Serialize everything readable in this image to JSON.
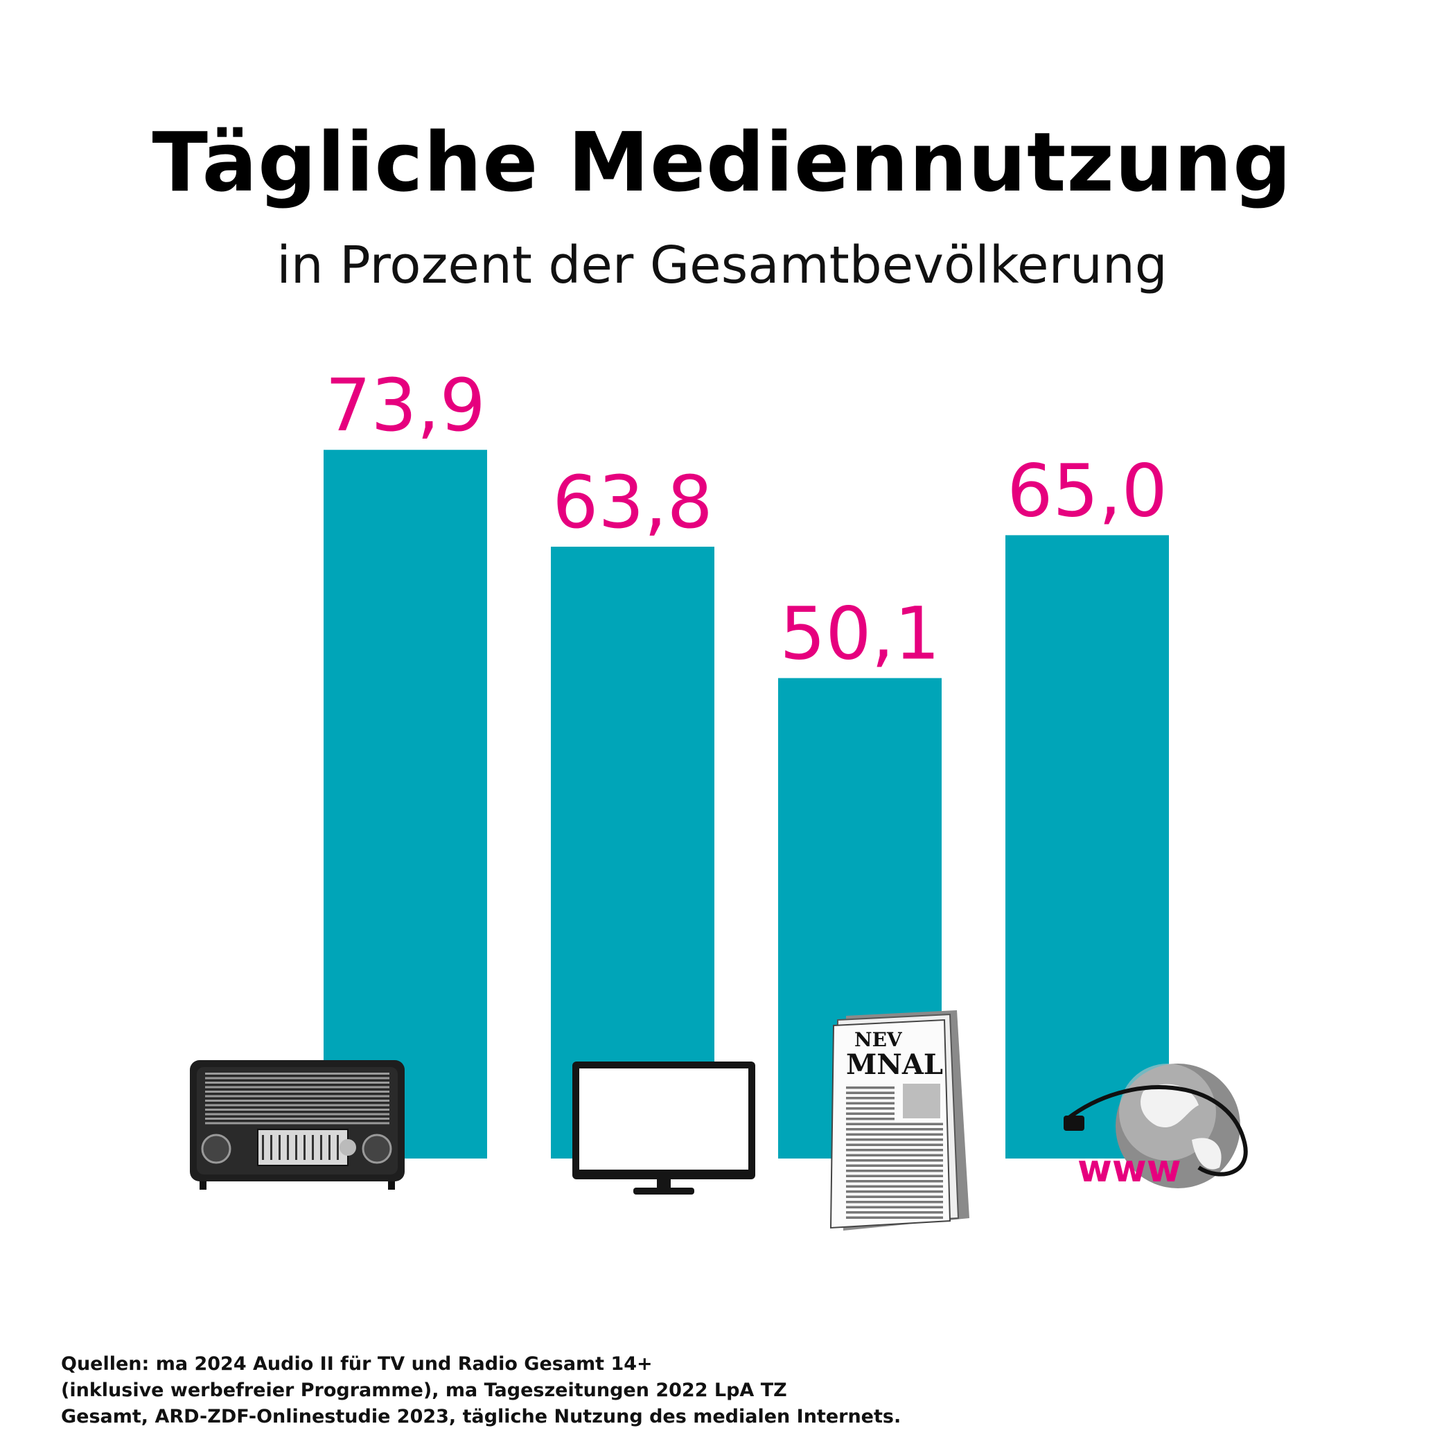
{
  "chart_data": {
    "type": "bar",
    "title": "Tägliche Mediennutzung",
    "subtitle": "in Prozent der Gesamtbevölkerung",
    "categories": [
      "",
      "",
      "",
      ""
    ],
    "values": [
      73.9,
      63.8,
      50.1,
      65.0
    ],
    "value_labels": [
      "73,9",
      "63,8",
      "50,1",
      "65,0"
    ],
    "icons": [
      "radio-icon",
      "tv-icon",
      "newspaper-icon",
      "globe-icon"
    ],
    "ylim": [
      0,
      100
    ],
    "grid": false,
    "colors": {
      "bar": "#00a5b8",
      "value_label": "#e6007e",
      "icon_text": "#e6007e"
    }
  },
  "icon_text": {
    "newspaper_line1": "NEV",
    "newspaper_line2": "MNAL",
    "globe": "www"
  },
  "sources": {
    "line1": "Quellen: ma 2024 Audio II für TV und Radio Gesamt 14+",
    "line2": "(inklusive werbefreier Programme), ma Tageszeitungen 2022 LpA TZ",
    "line3": "Gesamt, ARD-ZDF-Onlinestudie 2023, tägliche Nutzung des medialen Internets."
  }
}
